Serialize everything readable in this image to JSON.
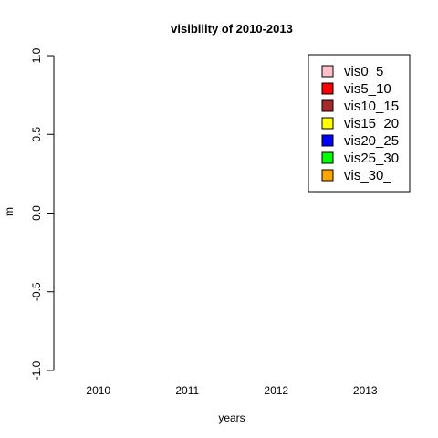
{
  "chart_data": {
    "type": "bar",
    "title": "visibility of 2010-2013",
    "xlabel": "years",
    "ylabel": "m",
    "categories": [
      "2010",
      "2011",
      "2012",
      "2013"
    ],
    "ylim": [
      -1.0,
      1.0
    ],
    "yticks": [
      "-1.0",
      "-0.5",
      "0.0",
      "0.5",
      "1.0"
    ],
    "legend_position": "top-right",
    "series": [
      {
        "name": "vis0_5",
        "color": "#ffc0cb",
        "values": [
          0,
          0,
          0,
          0
        ]
      },
      {
        "name": "vis5_10",
        "color": "#ff0000",
        "values": [
          0,
          0,
          0,
          0
        ]
      },
      {
        "name": "vis10_15",
        "color": "#a52a2a",
        "values": [
          0,
          0,
          0,
          0
        ]
      },
      {
        "name": "vis15_20",
        "color": "#ffff00",
        "values": [
          0,
          0,
          0,
          0
        ]
      },
      {
        "name": "vis20_25",
        "color": "#0000ff",
        "values": [
          0,
          0,
          0,
          0
        ]
      },
      {
        "name": "vis25_30",
        "color": "#00ff00",
        "values": [
          0,
          0,
          0,
          0
        ]
      },
      {
        "name": "vis_30_",
        "color": "#ffa500",
        "values": [
          0,
          0,
          0,
          0
        ]
      }
    ]
  }
}
